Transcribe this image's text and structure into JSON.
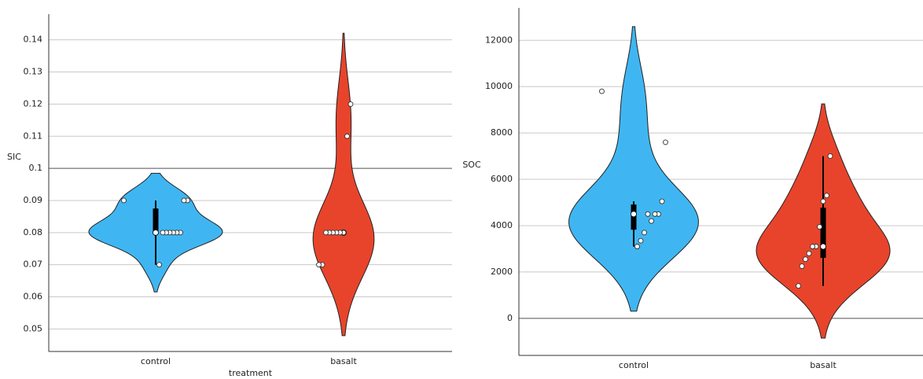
{
  "chart_data": [
    {
      "type": "violin",
      "y_label": "SIC",
      "x_label": "treatment",
      "categories": [
        "control",
        "basalt"
      ],
      "colors": [
        "#3fb6f2",
        "#e8442c"
      ],
      "values": [
        [
          0.09,
          0.09,
          0.09,
          0.08,
          0.08,
          0.08,
          0.08,
          0.08,
          0.08,
          0.07
        ],
        [
          0.12,
          0.11,
          0.08,
          0.08,
          0.08,
          0.08,
          0.08,
          0.08,
          0.07,
          0.07
        ]
      ],
      "ylim": [
        0.043,
        0.148
      ],
      "yticks": [
        0.05,
        0.06,
        0.07,
        0.08,
        0.09,
        0.1,
        0.11,
        0.12,
        0.13,
        0.14
      ],
      "reference_line": 0.1,
      "grid": true
    },
    {
      "type": "violin",
      "y_label": "SOC",
      "categories": [
        "control",
        "basalt"
      ],
      "colors": [
        "#3fb6f2",
        "#e8442c"
      ],
      "values": [
        [
          9800,
          7600,
          5050,
          4500,
          4500,
          4200,
          4500,
          3700,
          3350,
          3100
        ],
        [
          7000,
          5300,
          5050,
          3950,
          3100,
          3100,
          2800,
          2550,
          2250,
          1400
        ]
      ],
      "ylim": [
        -1600,
        13400
      ],
      "yticks": [
        0,
        2000,
        4000,
        6000,
        8000,
        10000,
        12000
      ],
      "reference_line": 0,
      "grid": true
    }
  ]
}
